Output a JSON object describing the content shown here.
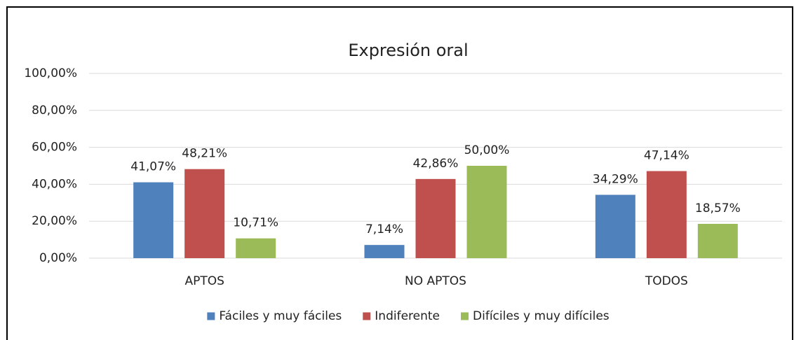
{
  "chart_data": {
    "type": "bar",
    "title": "Expresión oral",
    "categories": [
      "APTOS",
      "NO APTOS",
      "TODOS"
    ],
    "series": [
      {
        "name": "Fáciles y muy fáciles",
        "color": "#4f81bd",
        "values": [
          41.07,
          7.14,
          34.29
        ],
        "value_labels": [
          "41,07%",
          "7,14%",
          "34,29%"
        ]
      },
      {
        "name": "Indiferente",
        "color": "#c0504d",
        "values": [
          48.21,
          42.86,
          47.14
        ],
        "value_labels": [
          "48,21%",
          "42,86%",
          "47,14%"
        ]
      },
      {
        "name": "Difíciles y muy difíciles",
        "color": "#9bbb59",
        "values": [
          10.71,
          50.0,
          18.57
        ],
        "value_labels": [
          "10,71%",
          "50,00%",
          "18,57%"
        ]
      }
    ],
    "ylim": [
      0,
      100
    ],
    "yticks": [
      {
        "value": 0,
        "label": "0,00%"
      },
      {
        "value": 20,
        "label": "20,00%"
      },
      {
        "value": 40,
        "label": "40,00%"
      },
      {
        "value": 60,
        "label": "60,00%"
      },
      {
        "value": 80,
        "label": "80,00%"
      },
      {
        "value": 100,
        "label": "100,00%"
      }
    ],
    "grid": true,
    "legend": "bottom"
  }
}
